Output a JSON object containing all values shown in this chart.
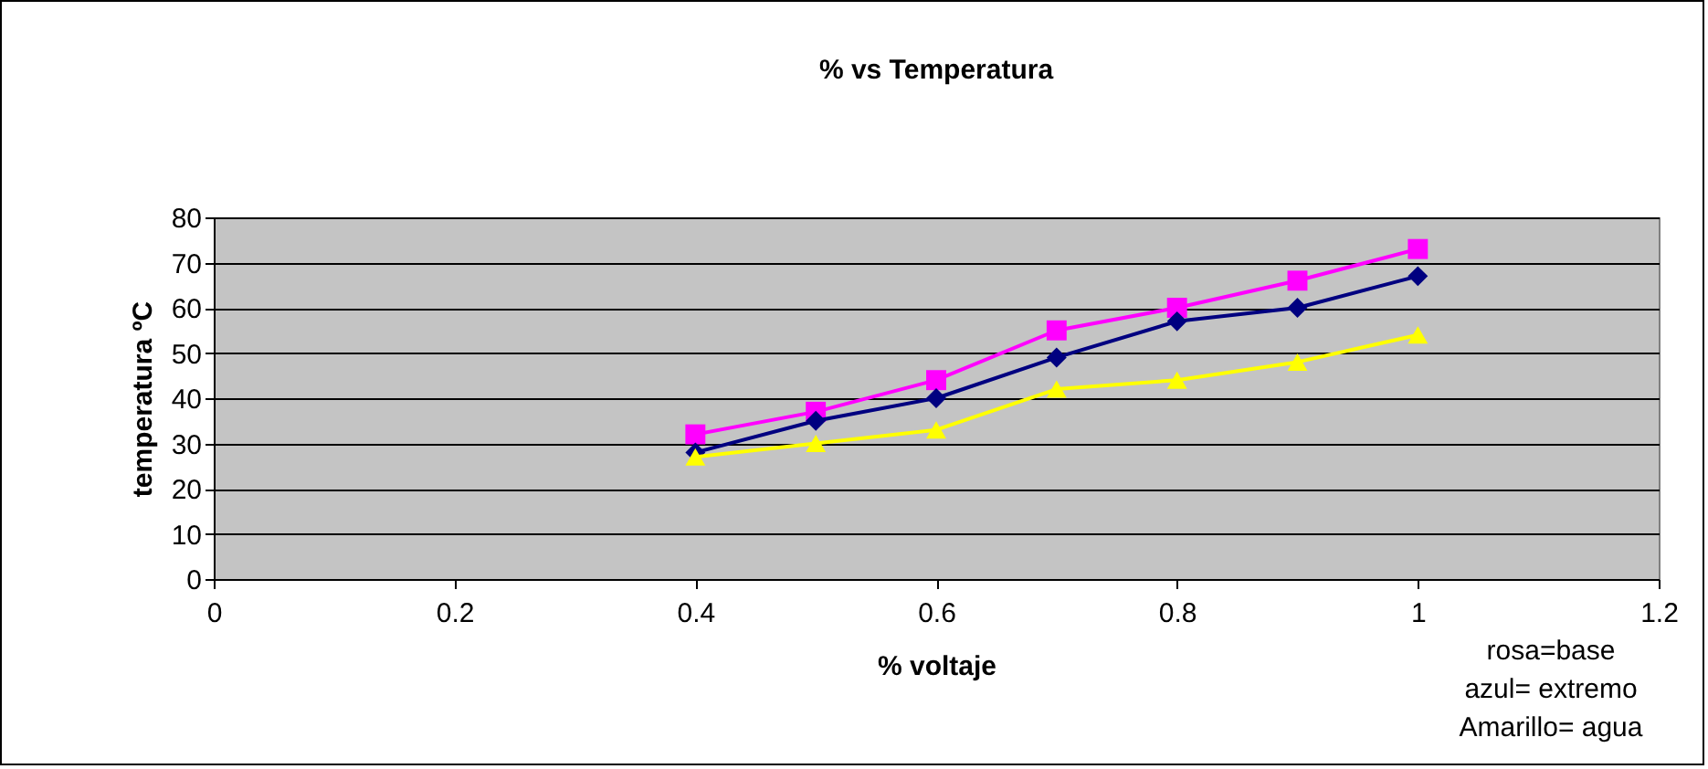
{
  "chart_data": {
    "type": "line",
    "title": "% vs Temperatura",
    "xlabel": "% voltaje",
    "ylabel": "temperatura ºC",
    "x": [
      0.4,
      0.5,
      0.6,
      0.7,
      0.8,
      0.9,
      1
    ],
    "series": [
      {
        "color": "#ff00ff",
        "marker": "square",
        "values": [
          32,
          37,
          44,
          55,
          60,
          66,
          73
        ]
      },
      {
        "color": "#000080",
        "marker": "diamond",
        "values": [
          28,
          35,
          40,
          49,
          57,
          60,
          67
        ]
      },
      {
        "color": "#ffff00",
        "marker": "triangle",
        "values": [
          27,
          30,
          33,
          42,
          44,
          48,
          54
        ]
      }
    ],
    "xlim": [
      0,
      1.2
    ],
    "xticks": [
      0,
      0.2,
      0.4,
      0.6,
      0.8,
      1,
      1.2
    ],
    "ylim": [
      0,
      80
    ],
    "yticks": [
      0,
      10,
      20,
      30,
      40,
      50,
      60,
      70,
      80
    ],
    "grid": "y",
    "annotations": [
      "rosa=base\nazul= extremo\nAmarillo= agua"
    ]
  }
}
